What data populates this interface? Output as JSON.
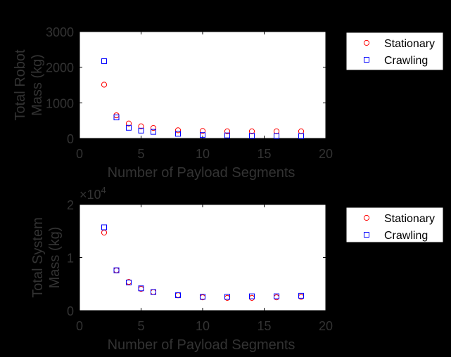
{
  "chart_data": [
    {
      "type": "scatter",
      "xlabel": "Number of Payload Segments",
      "ylabel_lines": [
        "Total Robot",
        "Mass (kg)"
      ],
      "xlim": [
        0,
        20
      ],
      "ylim": [
        0,
        3000
      ],
      "xticks": [
        0,
        5,
        10,
        15,
        20
      ],
      "yticks": [
        0,
        1000,
        2000,
        3000
      ],
      "ytick_labels": [
        "0",
        "1000",
        "2000",
        "3000"
      ],
      "exponent_label": "",
      "legend_position": "outside-right",
      "series": [
        {
          "name": "Stationary",
          "marker": "circle",
          "color": "#ff0000",
          "x": [
            2,
            3,
            4,
            5,
            6,
            8,
            10,
            12,
            14,
            16,
            18
          ],
          "y": [
            1510,
            650,
            420,
            340,
            295,
            230,
            210,
            200,
            200,
            200,
            200
          ]
        },
        {
          "name": "Crawling",
          "marker": "square",
          "color": "#0000ff",
          "x": [
            2,
            3,
            4,
            5,
            6,
            8,
            10,
            12,
            14,
            16,
            18
          ],
          "y": [
            2170,
            590,
            300,
            220,
            185,
            130,
            95,
            85,
            75,
            70,
            70
          ]
        }
      ]
    },
    {
      "type": "scatter",
      "xlabel": "Number of Payload Segments",
      "ylabel_lines": [
        "Total System",
        "Mass (kg)"
      ],
      "xlim": [
        0,
        20
      ],
      "ylim": [
        0,
        20000
      ],
      "xticks": [
        0,
        5,
        10,
        15,
        20
      ],
      "yticks": [
        0,
        10000,
        20000
      ],
      "ytick_labels": [
        "0",
        "1",
        "2"
      ],
      "exponent_label": "×10",
      "exponent_power": "4",
      "legend_position": "outside-right",
      "series": [
        {
          "name": "Stationary",
          "marker": "circle",
          "color": "#ff0000",
          "x": [
            2,
            3,
            4,
            5,
            6,
            8,
            10,
            12,
            14,
            16,
            18
          ],
          "y": [
            14700,
            7600,
            5400,
            4100,
            3500,
            2900,
            2500,
            2400,
            2400,
            2500,
            2600
          ]
        },
        {
          "name": "Crawling",
          "marker": "square",
          "color": "#0000ff",
          "x": [
            2,
            3,
            4,
            5,
            6,
            8,
            10,
            12,
            14,
            16,
            18
          ],
          "y": [
            15700,
            7600,
            5300,
            4200,
            3500,
            2900,
            2600,
            2600,
            2700,
            2700,
            2800
          ]
        }
      ]
    }
  ]
}
